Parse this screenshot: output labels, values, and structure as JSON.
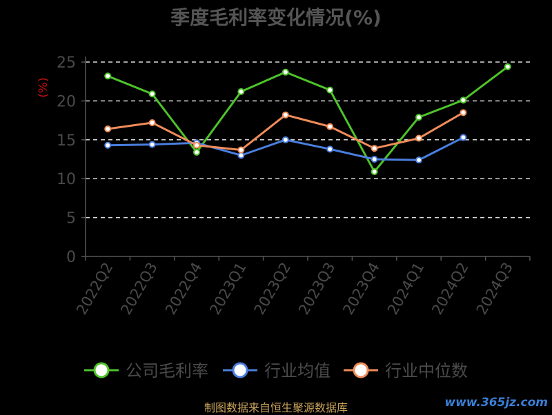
{
  "chart_data": {
    "type": "line",
    "title": "季度毛利率变化情况(%)",
    "ylabel": "(%)",
    "xlabel": "",
    "categories": [
      "2022Q2",
      "2022Q3",
      "2022Q4",
      "2023Q1",
      "2023Q2",
      "2023Q3",
      "2023Q4",
      "2024Q1",
      "2024Q2",
      "2024Q3"
    ],
    "ylim": [
      0,
      25
    ],
    "yticks": [
      0,
      5,
      10,
      15,
      20,
      25
    ],
    "grid": "horizontal-dashed",
    "legend_position": "bottom",
    "series": [
      {
        "name": "公司毛利率",
        "color": "#4ec42a",
        "values": [
          23.2,
          20.9,
          13.4,
          21.2,
          23.7,
          21.4,
          10.9,
          17.9,
          20.1,
          24.4
        ]
      },
      {
        "name": "行业均值",
        "color": "#4a7fe0",
        "values": [
          14.3,
          14.4,
          14.6,
          13.0,
          15.0,
          13.8,
          12.5,
          12.4,
          15.3,
          null
        ]
      },
      {
        "name": "行业中位数",
        "color": "#f08c5a",
        "values": [
          16.4,
          17.2,
          14.3,
          13.7,
          18.2,
          16.7,
          13.9,
          15.2,
          18.5,
          null
        ]
      }
    ]
  },
  "footer": {
    "source": "制图数据来自恒生聚源数据库"
  },
  "watermark": {
    "text": "www.365jz.com"
  }
}
